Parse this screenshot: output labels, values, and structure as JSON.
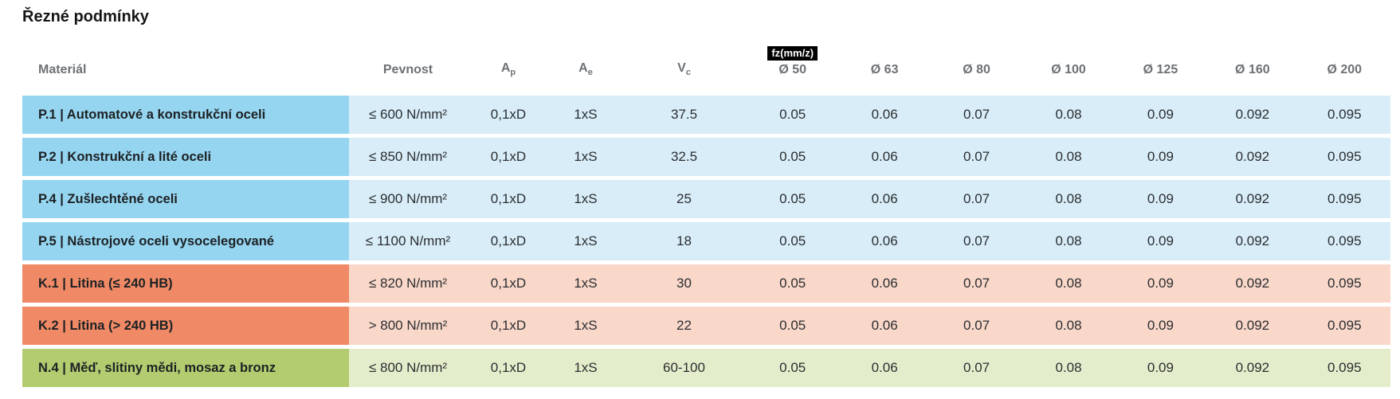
{
  "page": {
    "title": "Řezné podmínky"
  },
  "colors": {
    "badge_bg": "#000000",
    "badge_fg": "#ffffff",
    "header_text": "#6d7175",
    "row_colors": {
      "P": {
        "dark": "#95d5f0",
        "light": "#d8edf8"
      },
      "K": {
        "dark": "#f08a66",
        "light": "#f9d7c9"
      },
      "N": {
        "dark": "#b3cc6f",
        "light": "#e4edcb"
      }
    }
  },
  "table": {
    "badge": "fz(mm/z)",
    "columns": [
      {
        "label": "Materiál",
        "sub": ""
      },
      {
        "label": "Pevnost",
        "sub": ""
      },
      {
        "label": "A",
        "sub": "p"
      },
      {
        "label": "A",
        "sub": "e"
      },
      {
        "label": "V",
        "sub": "c"
      },
      {
        "label": "Ø 50",
        "sub": ""
      },
      {
        "label": "Ø 63",
        "sub": ""
      },
      {
        "label": "Ø 80",
        "sub": ""
      },
      {
        "label": "Ø 100",
        "sub": ""
      },
      {
        "label": "Ø 125",
        "sub": ""
      },
      {
        "label": "Ø 160",
        "sub": ""
      },
      {
        "label": "Ø 200",
        "sub": ""
      }
    ],
    "rows": [
      {
        "group": "P",
        "material": "P.1 | Automatové a konstrukční oceli",
        "pevnost": "≤ 600 N/mm²",
        "ap": "0,1xD",
        "ae": "1xS",
        "vc": "37.5",
        "fz": [
          "0.05",
          "0.06",
          "0.07",
          "0.08",
          "0.09",
          "0.092",
          "0.095"
        ]
      },
      {
        "group": "P",
        "material": "P.2 | Konstrukční a lité oceli",
        "pevnost": "≤ 850 N/mm²",
        "ap": "0,1xD",
        "ae": "1xS",
        "vc": "32.5",
        "fz": [
          "0.05",
          "0.06",
          "0.07",
          "0.08",
          "0.09",
          "0.092",
          "0.095"
        ]
      },
      {
        "group": "P",
        "material": "P.4 | Zušlechtěné oceli",
        "pevnost": "≤ 900 N/mm²",
        "ap": "0,1xD",
        "ae": "1xS",
        "vc": "25",
        "fz": [
          "0.05",
          "0.06",
          "0.07",
          "0.08",
          "0.09",
          "0.092",
          "0.095"
        ]
      },
      {
        "group": "P",
        "material": "P.5 | Nástrojové oceli vysocelegované",
        "pevnost": "≤ 1100 N/mm²",
        "ap": "0,1xD",
        "ae": "1xS",
        "vc": "18",
        "fz": [
          "0.05",
          "0.06",
          "0.07",
          "0.08",
          "0.09",
          "0.092",
          "0.095"
        ]
      },
      {
        "group": "K",
        "material": "K.1 | Litina (≤ 240 HB)",
        "pevnost": "≤ 820 N/mm²",
        "ap": "0,1xD",
        "ae": "1xS",
        "vc": "30",
        "fz": [
          "0.05",
          "0.06",
          "0.07",
          "0.08",
          "0.09",
          "0.092",
          "0.095"
        ]
      },
      {
        "group": "K",
        "material": "K.2 | Litina (> 240 HB)",
        "pevnost": "> 800 N/mm²",
        "ap": "0,1xD",
        "ae": "1xS",
        "vc": "22",
        "fz": [
          "0.05",
          "0.06",
          "0.07",
          "0.08",
          "0.09",
          "0.092",
          "0.095"
        ]
      },
      {
        "group": "N",
        "material": "N.4 | Měď, slitiny mědi, mosaz a bronz",
        "pevnost": "≤ 800 N/mm²",
        "ap": "0,1xD",
        "ae": "1xS",
        "vc": "60-100",
        "fz": [
          "0.05",
          "0.06",
          "0.07",
          "0.08",
          "0.09",
          "0.092",
          "0.095"
        ]
      }
    ]
  }
}
